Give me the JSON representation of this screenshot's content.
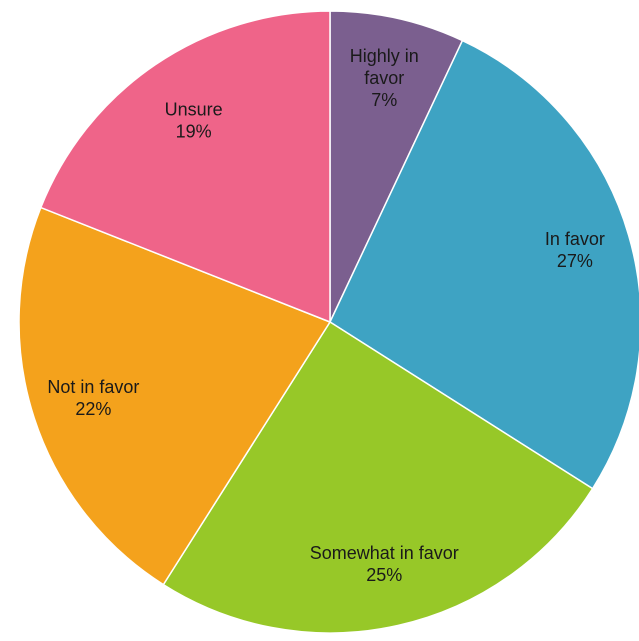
{
  "chart_data": {
    "type": "pie",
    "start_angle": "12 o'clock",
    "direction": "clockwise",
    "slices": [
      {
        "category": "Highly in favor",
        "value": 7,
        "value_label": "7%",
        "color": "#7b5f8f"
      },
      {
        "category": "In favor",
        "value": 27,
        "value_label": "27%",
        "color": "#3ea3c3"
      },
      {
        "category": "Somewhat in favor",
        "value": 25,
        "value_label": "25%",
        "color": "#97c828"
      },
      {
        "category": "Not in favor",
        "value": 22,
        "value_label": "22%",
        "color": "#f4a21c"
      },
      {
        "category": "Unsure",
        "value": 19,
        "value_label": "19%",
        "color": "#ef6489"
      }
    ]
  }
}
